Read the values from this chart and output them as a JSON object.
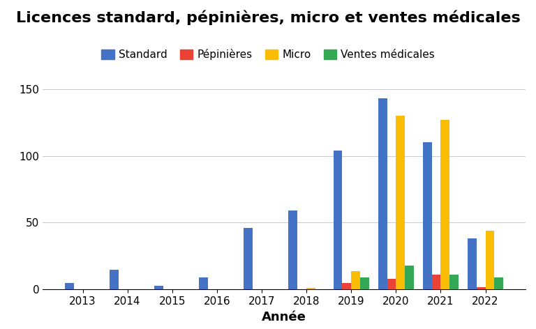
{
  "title": "Licences standard, pépinières, micro et ventes médicales",
  "xlabel": "Année",
  "ylabel": "",
  "years": [
    2013,
    2014,
    2015,
    2016,
    2017,
    2018,
    2019,
    2020,
    2021,
    2022
  ],
  "series": {
    "Standard": [
      5,
      15,
      3,
      9,
      46,
      59,
      104,
      143,
      110,
      38
    ],
    "Pépinières": [
      0,
      0,
      0,
      0,
      0,
      0,
      5,
      8,
      11,
      2
    ],
    "Micro": [
      0,
      0,
      0,
      0,
      0,
      1,
      14,
      130,
      127,
      44
    ],
    "Ventes médicales": [
      0,
      0,
      0,
      0,
      0,
      0,
      9,
      18,
      11,
      9
    ]
  },
  "colors": {
    "Standard": "#4472C4",
    "Pépinières": "#EA4335",
    "Micro": "#FBBC04",
    "Ventes médicales": "#34A853"
  },
  "ylim": [
    0,
    160
  ],
  "yticks": [
    0,
    50,
    100,
    150
  ],
  "bar_width": 0.2,
  "title_fontsize": 16,
  "axis_label_fontsize": 13,
  "tick_fontsize": 11,
  "legend_fontsize": 11,
  "background_color": "#ffffff",
  "grid_color": "#cccccc"
}
